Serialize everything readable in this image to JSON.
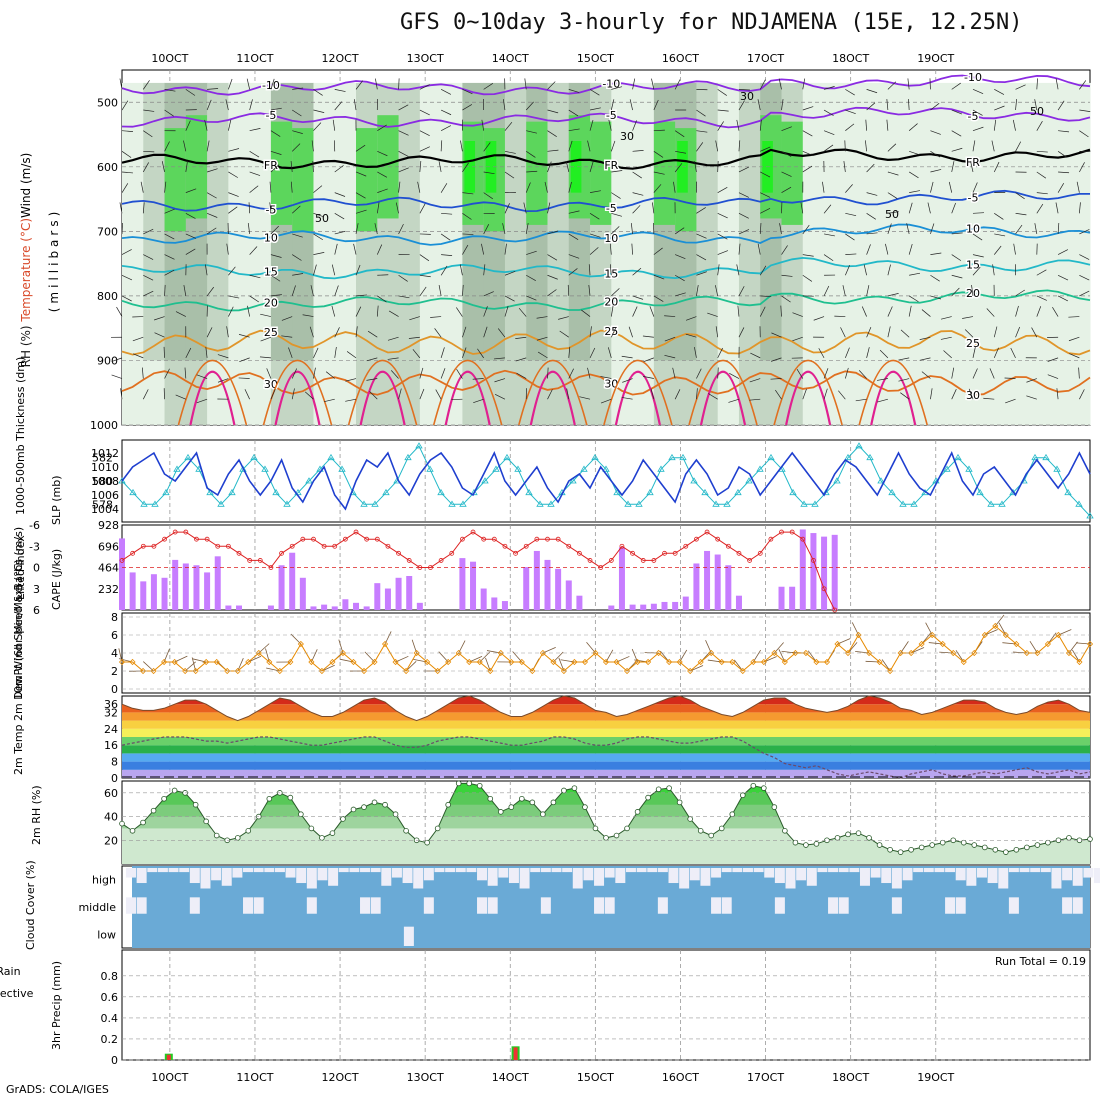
{
  "title": "GFS 0~10day 3-hourly for NDJAMENA (15E, 12.25N)",
  "credit": "GrADS: COLA/IGES",
  "colors": {
    "rh_light": "#e6f2e6",
    "rh_mid": "#c4d6c4",
    "rh_dark": "#a9bfa9",
    "rh_green": "#5cd65c",
    "rh_bright": "#22ee22",
    "precip_total": "#22cc22",
    "precip_conv": "#ee3333",
    "cloud_blue": "#6aaad6",
    "cloud_white": "#eeeef8",
    "cape": "#c77dff",
    "lifted": "#dd2222",
    "slp": "#1f3fcf",
    "thick": "#22b8c8",
    "wind": "#e68a00",
    "rh2m": "#44cc44"
  },
  "chart_data": [
    {
      "type": "heatmap",
      "name": "pressure-cross-section",
      "ylabel_parts": [
        "RH (%)",
        "Temperature (°C)",
        "Wind (m/s)",
        "(millibars)"
      ],
      "y_ticks": [
        "500",
        "600",
        "700",
        "800",
        "900",
        "1000"
      ],
      "ylim": [
        450,
        1000
      ],
      "temperature_isotherms": [
        {
          "label": "-10",
          "level": 478,
          "color": "#8a2be2"
        },
        {
          "label": "-5",
          "level": 528,
          "color": "#8a2be2"
        },
        {
          "label": "FR",
          "level": 592,
          "color": "#000000"
        },
        {
          "label": "-5",
          "level": 658,
          "color": "#2050d0"
        },
        {
          "label": "10",
          "level": 710,
          "color": "#1a8fd6"
        },
        {
          "label": "15",
          "level": 762,
          "color": "#22b8c8"
        },
        {
          "label": "20",
          "level": 812,
          "color": "#1fbf8f"
        },
        {
          "label": "25",
          "level": 872,
          "color": "#e0952a"
        },
        {
          "label": "30",
          "level": 935,
          "color": "#e07020"
        }
      ],
      "rh_contour_labels": [
        "30",
        "50",
        "50",
        "50",
        "30"
      ]
    },
    {
      "type": "line",
      "name": "slp-thickness",
      "ylabel_left": "1000-500mb Thickness (dm)",
      "ylabel_right": "SLP (mb)",
      "y_ticks_left": [
        "582",
        "580",
        "578"
      ],
      "y_ticks_right": [
        "1012",
        "1010",
        "1008",
        "1006",
        "1004"
      ],
      "slp": [
        1008,
        1010,
        1011,
        1012,
        1009,
        1008,
        1010,
        1012,
        1007,
        1006,
        1009,
        1011,
        1008,
        1006,
        1008,
        1011,
        1007,
        1005,
        1008,
        1010,
        1006,
        1004,
        1008,
        1011,
        1010,
        1012,
        1008,
        1006,
        1009,
        1011,
        1012,
        1010,
        1007,
        1006,
        1009,
        1012,
        1008,
        1006,
        1008,
        1010,
        1007,
        1005,
        1008,
        1009,
        1007,
        1010,
        1008,
        1006,
        1008,
        1011,
        1009,
        1007,
        1005,
        1009,
        1011,
        1009,
        1006,
        1007,
        1010,
        1009,
        1006,
        1008,
        1010,
        1012,
        1010,
        1008,
        1006,
        1009,
        1011,
        1010,
        1008,
        1006,
        1009,
        1012,
        1009,
        1007,
        1006,
        1009,
        1012,
        1008,
        1006,
        1009,
        1010,
        1008,
        1006,
        1009,
        1011,
        1009,
        1007,
        1009,
        1012,
        1009
      ],
      "thickness": [
        580,
        579,
        578,
        578,
        579,
        581,
        582,
        581,
        579,
        578,
        579,
        581,
        582,
        581,
        579,
        578,
        579,
        580,
        581,
        582,
        581,
        579,
        578,
        578,
        579,
        580,
        582,
        583,
        581,
        579,
        578,
        578,
        579,
        580,
        581,
        582,
        581,
        579,
        578,
        578,
        579,
        580,
        581,
        582,
        581,
        579,
        578,
        578,
        579,
        581,
        582,
        582,
        580,
        579,
        578,
        578,
        579,
        580,
        581,
        582,
        581,
        579,
        578,
        578,
        579,
        580,
        582,
        583,
        582,
        580,
        579,
        578,
        578,
        579,
        580,
        581,
        582,
        581,
        579,
        578,
        578,
        579,
        580,
        582,
        582,
        581,
        579,
        578,
        577
      ]
    },
    {
      "type": "bar",
      "name": "cape-lifted-index",
      "ylabel_left": "Lifted Index",
      "ylabel_right": "CAPE (J/kg)",
      "y_ticks_left": [
        "-6",
        "-3",
        "0",
        "3",
        "6"
      ],
      "y_ticks_right": [
        "928",
        "696",
        "464",
        "232"
      ],
      "cape": [
        800,
        420,
        320,
        400,
        360,
        560,
        520,
        500,
        420,
        600,
        50,
        50,
        0,
        0,
        50,
        500,
        640,
        360,
        40,
        60,
        40,
        120,
        80,
        40,
        300,
        240,
        360,
        380,
        80,
        0,
        0,
        0,
        580,
        540,
        240,
        140,
        100,
        0,
        480,
        660,
        560,
        460,
        330,
        160,
        0,
        0,
        50,
        700,
        60,
        60,
        70,
        90,
        90,
        150,
        520,
        660,
        620,
        500,
        160,
        0,
        0,
        0,
        260,
        260,
        900,
        860,
        820,
        840,
        0
      ],
      "lifted_index": [
        -1,
        -2,
        -3,
        -3,
        -4,
        -5,
        -5,
        -4,
        -4,
        -3,
        -3,
        -2,
        -1,
        -1,
        0,
        -2,
        -3,
        -4,
        -4,
        -3,
        -3,
        -4,
        -5,
        -4,
        -4,
        -3,
        -2,
        -1,
        0,
        0,
        -1,
        -2,
        -4,
        -5,
        -4,
        -4,
        -3,
        -2,
        -3,
        -4,
        -4,
        -4,
        -3,
        -2,
        -1,
        0,
        -1,
        -3,
        -2,
        -1,
        -1,
        -2,
        -2,
        -3,
        -4,
        -5,
        -4,
        -3,
        -2,
        -1,
        -2,
        -4,
        -5,
        -5,
        -4,
        -1,
        3,
        6
      ]
    },
    {
      "type": "line",
      "name": "10m-wind",
      "ylabel": "10m Wind Speed & Barbs (m/s)",
      "y_ticks": [
        "8",
        "6",
        "4",
        "2",
        "0"
      ],
      "speed": [
        3,
        3,
        2,
        2,
        3,
        3,
        2,
        2,
        3,
        3,
        2,
        2,
        3,
        4,
        3,
        2,
        3,
        5,
        3,
        2,
        3,
        4,
        3,
        2,
        3,
        5,
        3,
        2,
        4,
        3,
        2,
        3,
        4,
        3,
        3,
        2,
        4,
        3,
        3,
        2,
        4,
        3,
        2,
        3,
        3,
        4,
        3,
        3,
        2,
        3,
        3,
        4,
        3,
        3,
        2,
        3,
        4,
        3,
        3,
        2,
        3,
        3,
        4,
        3,
        4,
        4,
        3,
        3,
        5,
        4,
        6,
        4,
        3,
        2,
        4,
        4,
        5,
        6,
        5,
        4,
        3,
        4,
        6,
        7,
        6,
        5,
        4,
        4,
        5,
        6,
        4,
        3,
        5
      ],
      "ylim": [
        0,
        8
      ]
    },
    {
      "type": "area",
      "name": "2m-temp-dewpt",
      "ylabel": "2m Temp 2m DewPt (6hr Min/Max) (°C)",
      "y_ticks": [
        "36",
        "32",
        "24",
        "16",
        "8",
        "0"
      ],
      "temp": [
        36,
        34,
        33,
        33,
        34,
        36,
        38,
        38,
        36,
        33,
        30,
        28,
        30,
        33,
        36,
        39,
        38,
        35,
        32,
        30,
        30,
        32,
        35,
        38,
        39,
        37,
        33,
        30,
        28,
        30,
        33,
        36,
        39,
        40,
        38,
        35,
        32,
        30,
        30,
        32,
        35,
        38,
        40,
        39,
        36,
        33,
        32,
        30,
        31,
        33,
        35,
        37,
        39,
        40,
        38,
        35,
        33,
        31,
        30,
        32,
        35,
        38,
        39,
        39,
        36,
        34,
        33,
        32,
        33,
        35,
        38,
        40,
        39,
        37,
        34,
        33,
        31,
        32,
        34,
        36,
        38,
        38,
        37,
        34,
        32,
        31,
        32,
        35,
        37,
        38,
        36,
        33,
        32
      ],
      "dewpt": [
        16,
        17,
        18,
        19,
        20,
        20,
        20,
        19,
        18,
        18,
        17,
        18,
        19,
        20,
        20,
        19,
        18,
        17,
        16,
        16,
        17,
        18,
        19,
        20,
        20,
        18,
        16,
        15,
        15,
        16,
        18,
        19,
        20,
        20,
        19,
        18,
        17,
        16,
        16,
        17,
        18,
        20,
        20,
        19,
        17,
        16,
        16,
        17,
        19,
        20,
        20,
        19,
        18,
        17,
        17,
        18,
        19,
        20,
        20,
        18,
        15,
        12,
        10,
        7,
        6,
        5,
        6,
        4,
        2,
        1,
        2,
        3,
        2,
        1,
        0,
        2,
        3,
        4,
        2,
        1,
        1,
        2,
        3,
        2,
        3,
        4,
        5,
        3,
        2,
        3,
        4,
        2,
        3
      ],
      "ylim": [
        0,
        40
      ]
    },
    {
      "type": "area",
      "name": "2m-rh",
      "ylabel": "2m RH (%)",
      "y_ticks": [
        "60",
        "40",
        "20"
      ],
      "rh": [
        34,
        28,
        35,
        45,
        55,
        62,
        60,
        50,
        36,
        24,
        20,
        22,
        28,
        40,
        55,
        60,
        56,
        42,
        30,
        22,
        26,
        38,
        46,
        48,
        52,
        50,
        42,
        28,
        20,
        18,
        30,
        50,
        68,
        68,
        66,
        55,
        44,
        48,
        55,
        52,
        42,
        52,
        62,
        64,
        48,
        30,
        22,
        24,
        30,
        44,
        56,
        63,
        64,
        52,
        38,
        28,
        24,
        30,
        42,
        58,
        66,
        64,
        48,
        28,
        18,
        16,
        17,
        20,
        22,
        25,
        26,
        22,
        16,
        12,
        10,
        12,
        14,
        16,
        18,
        20,
        18,
        16,
        14,
        12,
        10,
        12,
        14,
        16,
        18,
        20,
        22,
        20,
        21
      ],
      "ylim": [
        0,
        70
      ]
    },
    {
      "type": "heatmap",
      "name": "cloud-cover",
      "ylabel": "Cloud Cover (%)",
      "rows": [
        "high",
        "middle",
        "low"
      ]
    },
    {
      "type": "bar",
      "name": "3hr-precip",
      "ylabel_left": "Total / Rain",
      "ylabel_left2": "Convective",
      "ylabel": "3hr Precip (mm)",
      "y_ticks": [
        "0.8",
        "0.6",
        "0.4",
        "0.2",
        "0"
      ],
      "annotation": "Run Total = 0.19",
      "events": [
        {
          "x": 4.4,
          "total": 0.06,
          "conv": 0.05
        },
        {
          "x": 37.0,
          "total": 0.13,
          "conv": 0.12
        }
      ],
      "ylim": [
        0,
        0.95
      ]
    }
  ],
  "x_axis": {
    "ticks": [
      "10OCT",
      "11OCT",
      "12OCT",
      "13OCT",
      "14OCT",
      "15OCT",
      "16OCT",
      "17OCT",
      "18OCT",
      "19OCT"
    ],
    "first_tick_step": 4.5,
    "steps_per_day": 8
  }
}
